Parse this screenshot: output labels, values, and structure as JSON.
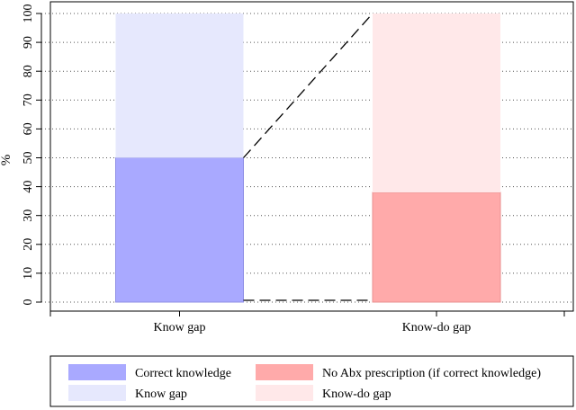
{
  "chart_data": {
    "type": "bar",
    "stacked": true,
    "categories": [
      "Know gap",
      "Know-do gap"
    ],
    "ylabel": "%",
    "ylim": [
      0,
      100
    ],
    "yticks": [
      0,
      10,
      20,
      30,
      40,
      50,
      60,
      70,
      80,
      90,
      100
    ],
    "grid": true,
    "legend_position": "bottom",
    "bars": [
      {
        "category": "Know gap",
        "segments": [
          {
            "name": "Correct knowledge",
            "value": 50,
            "color": "#a9a9ff"
          },
          {
            "name": "Know gap",
            "value": 50,
            "color": "#e6e8fd"
          }
        ]
      },
      {
        "category": "Know-do gap",
        "segments": [
          {
            "name": "No Abx prescription (if correct knowledge)",
            "value": 38,
            "color": "#ffaaaa"
          },
          {
            "name": "Know-do gap",
            "value": 62,
            "color": "#ffe8e9"
          }
        ]
      }
    ],
    "connectors": [
      {
        "from": {
          "category": "Know gap",
          "y": 50
        },
        "to": {
          "category": "Know-do gap",
          "y": 100
        },
        "style": "dashed"
      },
      {
        "from": {
          "category": "Know gap",
          "y": 0
        },
        "to": {
          "category": "Know-do gap",
          "y": 0
        },
        "style": "dashed"
      }
    ],
    "legend": [
      {
        "label": "Correct knowledge",
        "color": "#a9a9ff"
      },
      {
        "label": "No Abx prescription (if correct knowledge)",
        "color": "#ffaaaa"
      },
      {
        "label": "Know gap",
        "color": "#e6e8fd"
      },
      {
        "label": "Know-do gap",
        "color": "#ffe8e9"
      }
    ]
  }
}
